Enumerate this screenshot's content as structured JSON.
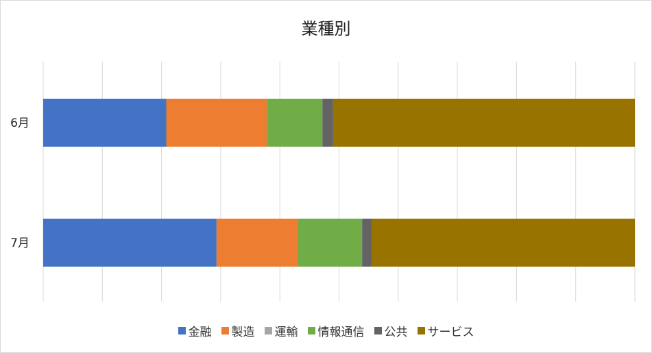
{
  "chart_data": {
    "type": "bar",
    "orientation": "horizontal",
    "stacked": "percent",
    "title": "業種別",
    "categories": [
      "6月",
      "7月"
    ],
    "series": [
      {
        "name": "金融",
        "color": "#4472C4",
        "values": [
          20.8,
          29.3
        ]
      },
      {
        "name": "製造",
        "color": "#ED7D31",
        "values": [
          17.0,
          13.8
        ]
      },
      {
        "name": "運輸",
        "color": "#A5A5A5",
        "values": [
          0.0,
          0.0
        ]
      },
      {
        "name": "情報通信",
        "color": "#70AD47",
        "values": [
          9.4,
          10.8
        ]
      },
      {
        "name": "公共",
        "color": "#636363",
        "values": [
          1.8,
          1.6
        ]
      },
      {
        "name": "サービス",
        "color": "#997300",
        "values": [
          51.0,
          44.5
        ]
      }
    ],
    "xlim": [
      0,
      100
    ],
    "grid": true,
    "legend_position": "bottom"
  }
}
